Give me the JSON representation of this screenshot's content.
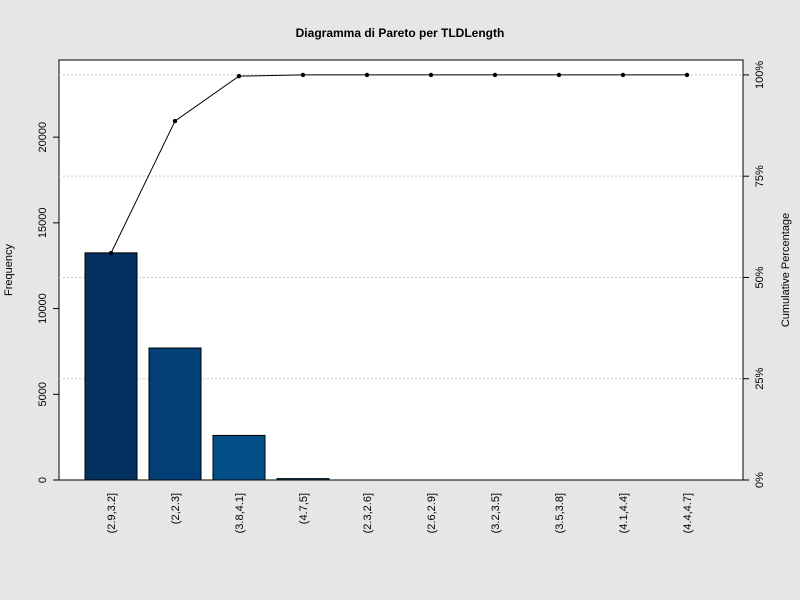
{
  "chart_data": {
    "type": "bar",
    "title": "Diagramma di Pareto per TLDLength",
    "ylabel": "Frequency",
    "y2label": "Cumulative Percentage",
    "categories": [
      "(2.9,3.2]",
      "(2,2.3]",
      "(3.8,4.1]",
      "(4.7,5]",
      "(2.3,2.6]",
      "(2.6,2.9]",
      "(3.2,3.5]",
      "(3.5,3.8]",
      "(4.1,4.4]",
      "(4.4,4.7]"
    ],
    "values": [
      13250,
      7700,
      2600,
      80,
      0,
      0,
      0,
      0,
      0,
      0
    ],
    "cumulative_percent": [
      56.0,
      88.6,
      99.7,
      100,
      100,
      100,
      100,
      100,
      100,
      100
    ],
    "ylim": [
      0,
      24500
    ],
    "y_ticks": [
      0,
      5000,
      10000,
      15000,
      20000
    ],
    "y2_ticks": [
      "0%",
      "25%",
      "50%",
      "75%",
      "100%"
    ],
    "grid": "horizontal dotted at cumulative ticks",
    "bar_colors": [
      "#02305f",
      "#023f76",
      "#024f87",
      "#035e95"
    ],
    "background": "#e6e6e6",
    "plot_background": "#ffffff"
  }
}
